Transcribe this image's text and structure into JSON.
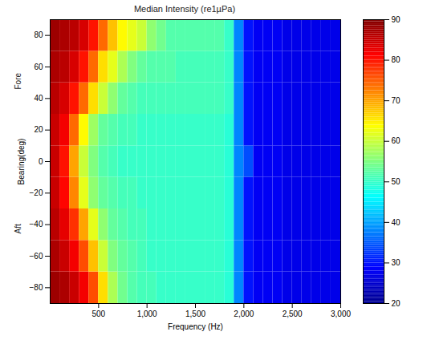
{
  "chart_data": {
    "type": "heatmap",
    "title": "Median Intensity (re1µPa)",
    "x_label": "Frequency (Hz)",
    "y_label": "Bearing(deg)",
    "y_side_labels": {
      "top": "Fore",
      "bottom": "Aft"
    },
    "xlim": [
      0,
      3000
    ],
    "xticks": [
      500,
      1000,
      1500,
      2000,
      2500,
      3000
    ],
    "ylim": [
      -90,
      90
    ],
    "yticks": [
      -80,
      -60,
      -40,
      -20,
      0,
      20,
      40,
      60,
      80
    ],
    "x_bins": [
      0,
      100,
      200,
      300,
      400,
      500,
      600,
      700,
      800,
      900,
      1000,
      1100,
      1200,
      1300,
      1400,
      1500,
      1600,
      1700,
      1800,
      1900,
      2000,
      2100,
      2200,
      2300,
      2400,
      2500,
      2600,
      2700,
      2800,
      2900,
      3000
    ],
    "y_bins": [
      -90,
      -70,
      -50,
      -30,
      -10,
      10,
      30,
      50,
      70,
      90
    ],
    "cells": [
      [
        88,
        87,
        85,
        82,
        76,
        66,
        58,
        54,
        52,
        51,
        51,
        50,
        50,
        50,
        50,
        50,
        50,
        50,
        49,
        38,
        30,
        28,
        28,
        28,
        27,
        27,
        27,
        27,
        27,
        27
      ],
      [
        87,
        85,
        82,
        76,
        68,
        60,
        55,
        53,
        52,
        51,
        50,
        50,
        50,
        50,
        50,
        50,
        50,
        50,
        49,
        38,
        30,
        28,
        28,
        28,
        27,
        27,
        27,
        27,
        27,
        27
      ],
      [
        86,
        83,
        78,
        70,
        62,
        56,
        53,
        52,
        51,
        51,
        50,
        50,
        50,
        50,
        50,
        50,
        50,
        50,
        49,
        38,
        30,
        28,
        28,
        28,
        27,
        27,
        27,
        27,
        27,
        27
      ],
      [
        85,
        81,
        72,
        62,
        56,
        53,
        52,
        51,
        51,
        50,
        50,
        50,
        50,
        50,
        50,
        50,
        50,
        50,
        49,
        38,
        30,
        28,
        28,
        28,
        27,
        27,
        27,
        27,
        27,
        27
      ],
      [
        85,
        80,
        70,
        60,
        55,
        52,
        51,
        50,
        50,
        50,
        50,
        50,
        50,
        50,
        50,
        50,
        50,
        50,
        49,
        38,
        34,
        28,
        28,
        28,
        27,
        27,
        27,
        27,
        27,
        27
      ],
      [
        85,
        82,
        74,
        64,
        57,
        53,
        52,
        51,
        51,
        50,
        50,
        50,
        50,
        50,
        50,
        50,
        50,
        50,
        49,
        38,
        30,
        28,
        28,
        28,
        27,
        27,
        27,
        27,
        27,
        27
      ],
      [
        86,
        84,
        80,
        74,
        66,
        60,
        56,
        53,
        52,
        51,
        51,
        51,
        51,
        51,
        51,
        51,
        51,
        51,
        50,
        38,
        30,
        28,
        28,
        28,
        27,
        27,
        27,
        27,
        27,
        27
      ],
      [
        87,
        86,
        84,
        80,
        74,
        66,
        62,
        58,
        55,
        53,
        52,
        52,
        52,
        51,
        51,
        51,
        51,
        51,
        50,
        38,
        30,
        28,
        28,
        28,
        27,
        27,
        27,
        27,
        27,
        27
      ],
      [
        88,
        87,
        86,
        84,
        80,
        74,
        68,
        64,
        62,
        60,
        56,
        54,
        52,
        52,
        52,
        52,
        52,
        52,
        50,
        38,
        30,
        28,
        28,
        28,
        27,
        27,
        27,
        27,
        27,
        27
      ]
    ],
    "colorbar": {
      "range": [
        20,
        90
      ],
      "ticks": [
        20,
        30,
        40,
        50,
        60,
        70,
        80,
        90
      ]
    }
  }
}
